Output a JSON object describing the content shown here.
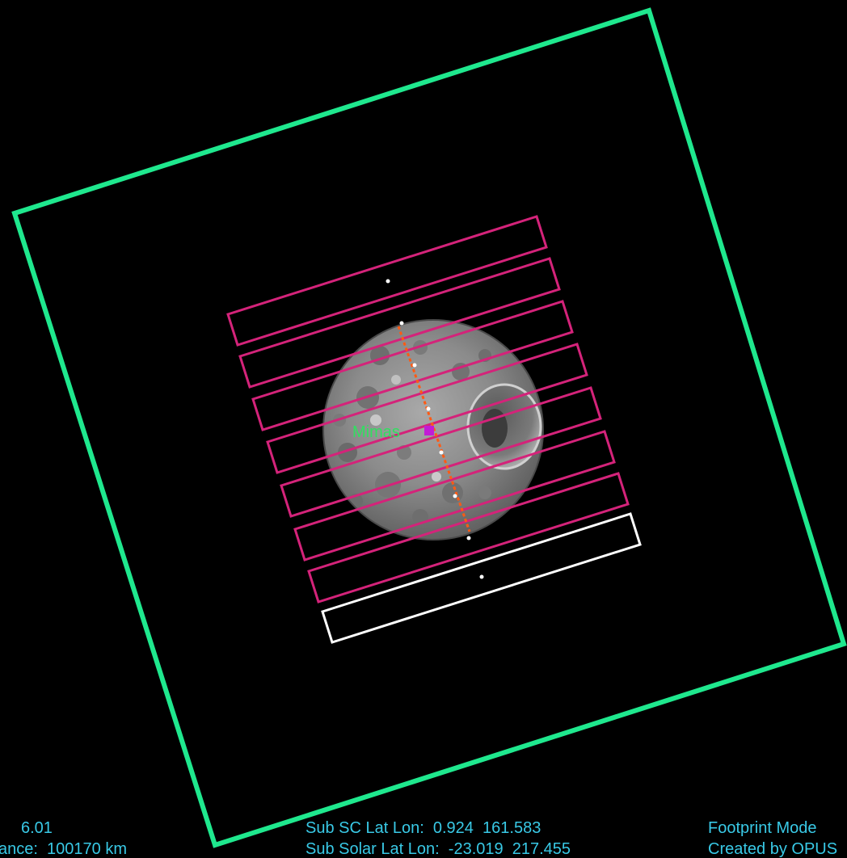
{
  "colors": {
    "background": "#000000",
    "outer_fov": "#1fe88e",
    "footprint": "#d4237a",
    "footprint_current": "#ffffff",
    "ground_track": "#ff5a14",
    "hud_text": "#39c9e6",
    "target_label": "#30e060",
    "target_marker": "#c21cd6"
  },
  "target": {
    "name": "Mimas"
  },
  "hud": {
    "left_line1": "6.01",
    "left_line2": "ance:  100170 km",
    "mid_line1": "Sub SC Lat Lon:  0.924  161.583",
    "mid_line2": "Sub Solar Lat Lon:  -23.019  217.455",
    "right_line1": "Footprint Mode",
    "right_line2": "Created by OPUS"
  },
  "icons": {
    "fov": "square-frame-icon",
    "footprint": "rectangle-strip-icon",
    "track": "ground-track-icon",
    "marker": "target-marker-icon"
  }
}
